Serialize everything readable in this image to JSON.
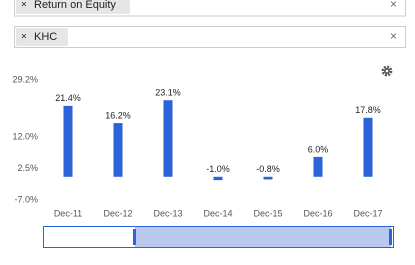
{
  "filters": {
    "metric": "Return on Equity",
    "ticker": "KHC"
  },
  "chart_data": {
    "type": "bar",
    "categories": [
      "Dec-11",
      "Dec-12",
      "Dec-13",
      "Dec-14",
      "Dec-15",
      "Dec-16",
      "Dec-17"
    ],
    "values": [
      21.4,
      16.2,
      23.1,
      -1.0,
      -0.8,
      6.0,
      17.8
    ],
    "value_labels": [
      "21.4%",
      "16.2%",
      "23.1%",
      "-1.0%",
      "-0.8%",
      "6.0%",
      "17.8%"
    ],
    "color": "#2b63d9",
    "ylim": [
      -7.0,
      29.2
    ],
    "yticks": [
      {
        "value": 29.2,
        "label": "29.2%"
      },
      {
        "value": 12.0,
        "label": "12.0%"
      },
      {
        "value": 2.5,
        "label": "2.5%"
      },
      {
        "value": -7.0,
        "label": "-7.0%"
      }
    ],
    "grid": false
  }
}
